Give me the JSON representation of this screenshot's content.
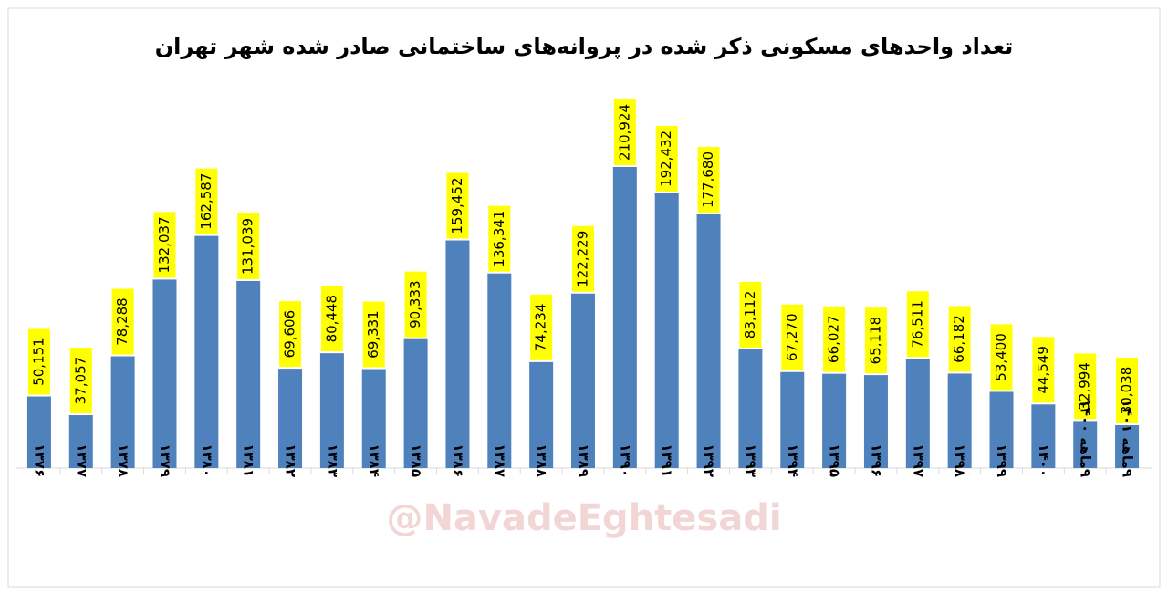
{
  "chart_data": {
    "type": "bar",
    "title": "تعداد واحدهای مسکونی ذکر شده در پروانه‌های ساختمانی صادر شده شهر تهران",
    "watermark": "@NavadeEghtesadi",
    "categories": [
      "۱۳۷۶",
      "۱۳۷۷",
      "۱۳۷۸",
      "۱۳۷۹",
      "۱۳۸۰",
      "۱۳۸۱",
      "۱۳۸۲",
      "۱۳۸۳",
      "۱۳۸۴",
      "۱۳۸۵",
      "۱۳۸۶",
      "۱۳۸۷",
      "۱۳۸۸",
      "۱۳۸۹",
      "۱۳۹۰",
      "۱۳۹۱",
      "۱۳۹۲",
      "۱۳۹۳",
      "۱۳۹۴",
      "۱۳۹۵",
      "۱۳۹۶",
      "۱۳۹۷",
      "۱۳۹۸",
      "۱۳۹۹",
      "۱۴۰۰",
      "۹ماهه ۱۴۰۰",
      "۹ماهه ۱۴۰۱"
    ],
    "values": [
      50151,
      37057,
      78288,
      132037,
      162587,
      131039,
      69606,
      80448,
      69331,
      90333,
      159452,
      136341,
      74234,
      122229,
      210924,
      192432,
      177680,
      83112,
      67270,
      66027,
      65118,
      76511,
      66182,
      53400,
      44549,
      32994,
      30038
    ],
    "value_labels": [
      "50,151",
      "37,057",
      "78,288",
      "132,037",
      "162,587",
      "131,039",
      "69,606",
      "80,448",
      "69,331",
      "90,333",
      "159,452",
      "136,341",
      "74,234",
      "122,229",
      "210,924",
      "192,432",
      "177,680",
      "83,112",
      "67,270",
      "66,027",
      "65,118",
      "76,511",
      "66,182",
      "53,400",
      "44,549",
      "32,994",
      "30,038"
    ],
    "color": "#4f81bd",
    "label_color": "#ffff00"
  }
}
